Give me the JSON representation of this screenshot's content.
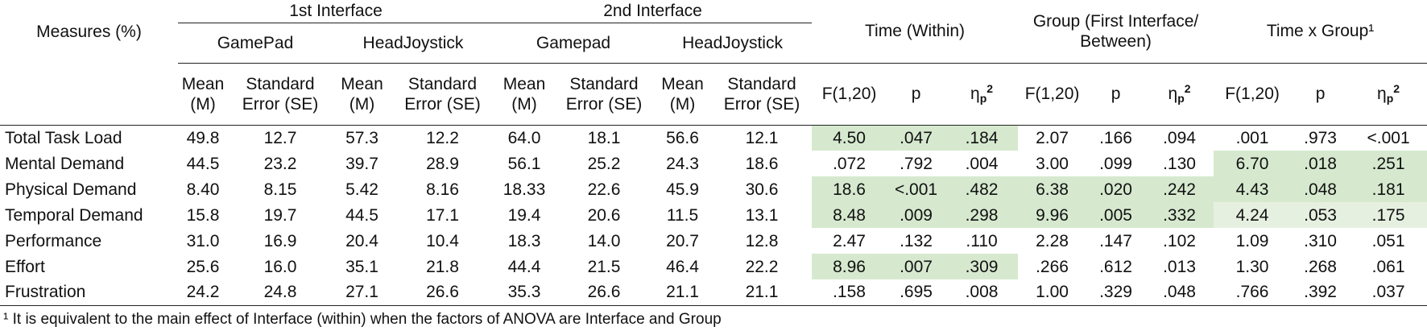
{
  "table": {
    "measures_header": "Measures (%)",
    "interfaces": [
      {
        "label": "1st Interface",
        "devices": [
          "GamePad",
          "HeadJoystick"
        ]
      },
      {
        "label": "2nd Interface",
        "devices": [
          "Gamepad",
          "HeadJoystick"
        ]
      }
    ],
    "descriptive_columns": [
      "Mean (M)",
      "Standard Error (SE)"
    ],
    "effects": [
      "Time (Within)",
      "Group (First Interface/ Between)",
      "Time x Group¹"
    ],
    "effect_columns": [
      "F(1,20)",
      "p",
      {
        "symbol": "η",
        "sub": "p",
        "sup": "2"
      }
    ],
    "rows": [
      {
        "measure": "Total Task Load",
        "cells": [
          "49.8",
          "12.7",
          "57.3",
          "12.2",
          "64.0",
          "18.1",
          "56.6",
          "12.1",
          "4.50",
          ".047",
          ".184",
          "2.07",
          ".166",
          ".094",
          ".001",
          ".973",
          "<.001"
        ],
        "shade": [
          "#d6e9cf",
          null,
          null
        ]
      },
      {
        "measure": "Mental Demand",
        "cells": [
          "44.5",
          "23.2",
          "39.7",
          "28.9",
          "56.1",
          "25.2",
          "24.3",
          "18.6",
          ".072",
          ".792",
          ".004",
          "3.00",
          ".099",
          ".130",
          "6.70",
          ".018",
          ".251"
        ],
        "shade": [
          null,
          null,
          "#d6e9cf"
        ]
      },
      {
        "measure": "Physical Demand",
        "cells": [
          "8.40",
          "8.15",
          "5.42",
          "8.16",
          "18.33",
          "22.6",
          "45.9",
          "30.6",
          "18.6",
          "<.001",
          ".482",
          "6.38",
          ".020",
          ".242",
          "4.43",
          ".048",
          ".181"
        ],
        "shade": [
          "#d6e9cf",
          "#d6e9cf",
          "#d6e9cf"
        ]
      },
      {
        "measure": "Temporal Demand",
        "cells": [
          "15.8",
          "19.7",
          "44.5",
          "17.1",
          "19.4",
          "20.6",
          "11.5",
          "13.1",
          "8.48",
          ".009",
          ".298",
          "9.96",
          ".005",
          ".332",
          "4.24",
          ".053",
          ".175"
        ],
        "shade": [
          "#d6e9cf",
          "#d6e9cf",
          "#e6f0e0"
        ]
      },
      {
        "measure": "Performance",
        "cells": [
          "31.0",
          "16.9",
          "20.4",
          "10.4",
          "18.3",
          "14.0",
          "20.7",
          "12.8",
          "2.47",
          ".132",
          ".110",
          "2.28",
          ".147",
          ".102",
          "1.09",
          ".310",
          ".051"
        ],
        "shade": [
          null,
          null,
          null
        ]
      },
      {
        "measure": "Effort",
        "cells": [
          "25.6",
          "16.0",
          "35.1",
          "21.8",
          "44.4",
          "21.5",
          "46.4",
          "22.2",
          "8.96",
          ".007",
          ".309",
          ".266",
          ".612",
          ".013",
          "1.30",
          ".268",
          ".061"
        ],
        "shade": [
          "#d6e9cf",
          null,
          null
        ]
      },
      {
        "measure": "Frustration",
        "cells": [
          "24.2",
          "24.8",
          "27.1",
          "26.6",
          "35.3",
          "26.6",
          "21.1",
          "21.1",
          ".158",
          ".695",
          ".008",
          "1.00",
          ".329",
          ".048",
          ".766",
          ".392",
          ".037"
        ],
        "shade": [
          null,
          null,
          null
        ]
      }
    ]
  },
  "footnote": "¹ It is equivalent to the main effect of Interface (within) when the factors of ANOVA are Interface and Group"
}
